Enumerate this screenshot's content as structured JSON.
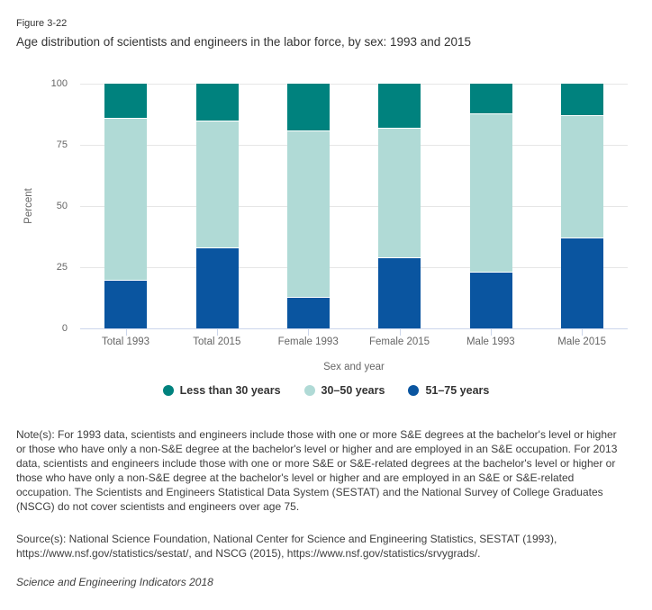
{
  "figure_label": "Figure 3-22",
  "title": "Age distribution of scientists and engineers in the labor force, by sex: 1993 and 2015",
  "chart_data": {
    "type": "bar",
    "stacked": true,
    "title": "Age distribution of scientists and engineers in the labor force, by sex: 1993 and 2015",
    "categories": [
      "Total 1993",
      "Total 2015",
      "Female 1993",
      "Female 2015",
      "Male 1993",
      "Male 2015"
    ],
    "series": [
      {
        "name": "Less than 30 years",
        "color": "#00827e",
        "values": [
          14,
          15,
          19,
          18,
          12,
          13
        ]
      },
      {
        "name": "30–50 years",
        "color": "#b0dad6",
        "values": [
          66,
          52,
          68,
          53,
          65,
          50
        ]
      },
      {
        "name": "51–75 years",
        "color": "#0a55a0",
        "values": [
          20,
          33,
          13,
          29,
          23,
          37
        ]
      }
    ],
    "stack_order_bottom_to_top": [
      "51–75 years",
      "30–50 years",
      "Less than 30 years"
    ],
    "xlabel": "Sex and year",
    "ylabel": "Percent",
    "ylim": [
      0,
      100
    ],
    "yticks": [
      0,
      25,
      50,
      75,
      100
    ],
    "grid": true,
    "legend_position": "bottom",
    "colors": {
      "axis_line": "#ccd6eb",
      "gridline": "#e6e6e6",
      "tick_label": "#666666",
      "segment_border": "#ffffff"
    }
  },
  "notes": "Note(s): For 1993 data, scientists and engineers include those with one or more S&E degrees at the bachelor's level or higher or those who have only a non-S&E degree at the bachelor's level or higher and are employed in an S&E occupation. For 2013 data, scientists and engineers include those with one or more S&E or S&E-related degrees at the bachelor's level or higher or those who have only a non-S&E degree at the bachelor's level or higher and are employed in an S&E or S&E-related occupation. The Scientists and Engineers Statistical Data System (SESTAT) and the National Survey of College Graduates (NSCG) do not cover scientists and engineers over age 75.",
  "source": "Source(s): National Science Foundation, National Center for Science and Engineering Statistics, SESTAT (1993), https://www.nsf.gov/statistics/sestat/, and NSCG (2015), https://www.nsf.gov/statistics/srvygrads/.",
  "footer": "Science and Engineering Indicators 2018"
}
